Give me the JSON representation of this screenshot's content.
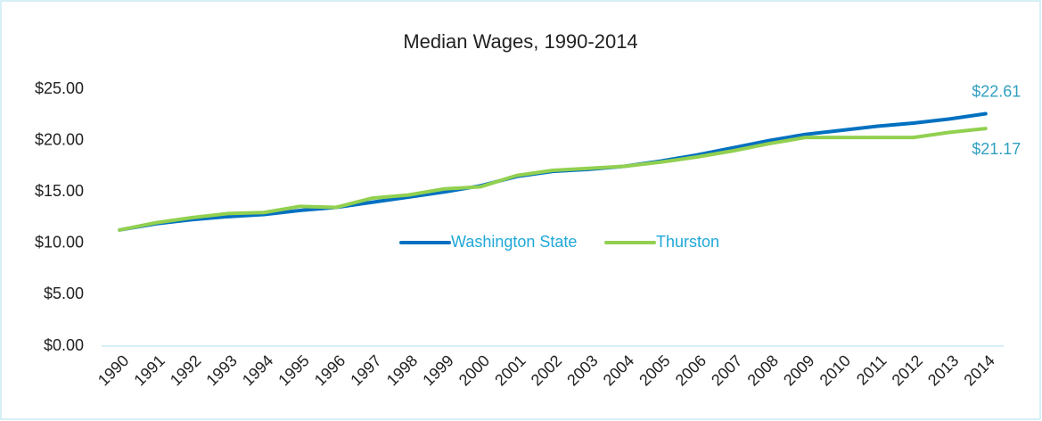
{
  "chart_data": {
    "type": "line",
    "title": "Median Wages, 1990-2014",
    "categories": [
      "1990",
      "1991",
      "1992",
      "1993",
      "1994",
      "1995",
      "1996",
      "1997",
      "1998",
      "1999",
      "2000",
      "2001",
      "2002",
      "2003",
      "2004",
      "2005",
      "2006",
      "2007",
      "2008",
      "2009",
      "2010",
      "2011",
      "2012",
      "2013",
      "2014"
    ],
    "series": [
      {
        "name": "Washington State",
        "color": "#0070c0",
        "values": [
          11.3,
          11.9,
          12.3,
          12.6,
          12.8,
          13.2,
          13.5,
          14.0,
          14.5,
          15.0,
          15.6,
          16.5,
          17.0,
          17.2,
          17.5,
          18.0,
          18.6,
          19.3,
          20.0,
          20.6,
          21.0,
          21.4,
          21.7,
          22.1,
          22.61
        ],
        "value_labels": [
          null,
          null,
          null,
          null,
          null,
          null,
          null,
          null,
          null,
          null,
          null,
          null,
          null,
          null,
          null,
          null,
          null,
          null,
          null,
          null,
          null,
          null,
          null,
          null,
          "$22.61"
        ]
      },
      {
        "name": "Thurston",
        "color": "#92d050",
        "values": [
          11.3,
          12.0,
          12.5,
          12.9,
          13.0,
          13.6,
          13.5,
          14.4,
          14.7,
          15.3,
          15.5,
          16.6,
          17.1,
          17.3,
          17.5,
          17.9,
          18.4,
          19.0,
          19.7,
          20.3,
          20.3,
          20.3,
          20.3,
          20.8,
          21.17
        ],
        "value_labels": [
          null,
          null,
          null,
          null,
          null,
          null,
          null,
          null,
          null,
          null,
          null,
          null,
          null,
          null,
          null,
          null,
          null,
          null,
          null,
          null,
          null,
          null,
          null,
          null,
          "$21.17"
        ]
      }
    ],
    "ylim": [
      0,
      25
    ],
    "yticks": [
      {
        "value": 0,
        "label": "$0.00"
      },
      {
        "value": 5,
        "label": "$5.00"
      },
      {
        "value": 10,
        "label": "$10.00"
      },
      {
        "value": 15,
        "label": "$15.00"
      },
      {
        "value": 20,
        "label": "$20.00"
      },
      {
        "value": 25,
        "label": "$25.00"
      }
    ],
    "grid": false,
    "legend": "center"
  }
}
